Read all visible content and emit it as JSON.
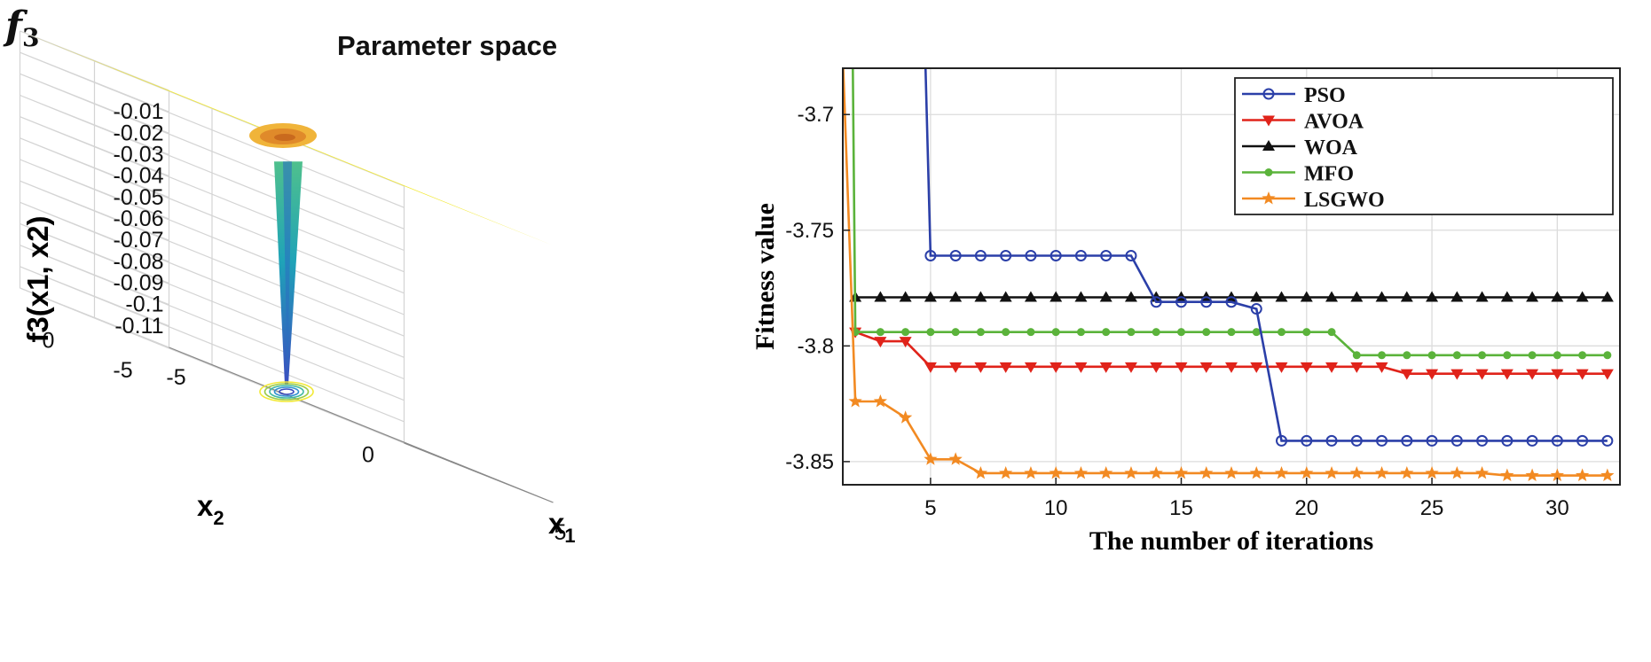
{
  "figure_label": {
    "main": "f",
    "sub": "3"
  },
  "chart_data": [
    {
      "type": "surface",
      "title": "Parameter space",
      "xlabel": "x1",
      "ylabel": "x2",
      "zlabel": "f3(x1, x2)",
      "x_ticks": [
        "-5",
        "0",
        "5"
      ],
      "y_ticks": [
        "-5",
        "0",
        "5"
      ],
      "z_ticks": [
        "-0.01",
        "-0.02",
        "-0.03",
        "-0.04",
        "-0.05",
        "-0.06",
        "-0.07",
        "-0.08",
        "-0.09",
        "-0.1",
        "-0.11"
      ],
      "xlim": [
        -5,
        5
      ],
      "ylim": [
        -5,
        5
      ],
      "zlim": [
        -0.12,
        0
      ],
      "surface": {
        "plateau_value": 0,
        "minimum_value": -0.115,
        "minimum_at": [
          0,
          0
        ],
        "plateau_color": "#f2e936"
      },
      "grid": true
    },
    {
      "type": "line",
      "xlabel": "The number of iterations",
      "ylabel": "Fitness value",
      "xlim": [
        1.5,
        32.5
      ],
      "ylim": [
        -3.86,
        -3.68
      ],
      "x_ticks": [
        5,
        10,
        15,
        20,
        25,
        30
      ],
      "y_ticks": [
        -3.85,
        -3.8,
        -3.75,
        -3.7
      ],
      "y_tick_labels": [
        "-3.85",
        "-3.8",
        "-3.75",
        "-3.7"
      ],
      "grid": true,
      "legend_position": "top-right",
      "series": [
        {
          "name": "PSO",
          "color": "#2b3fa8",
          "marker": "circle",
          "x": [
            4.8,
            5,
            6,
            7,
            8,
            9,
            10,
            11,
            12,
            13,
            14,
            15,
            16,
            17,
            18,
            19,
            20,
            21,
            22,
            23,
            24,
            25,
            26,
            27,
            28,
            29,
            30,
            31,
            32
          ],
          "values": [
            -3.68,
            -3.761,
            -3.761,
            -3.761,
            -3.761,
            -3.761,
            -3.761,
            -3.761,
            -3.761,
            -3.761,
            -3.781,
            -3.781,
            -3.781,
            -3.781,
            -3.784,
            -3.841,
            -3.841,
            -3.841,
            -3.841,
            -3.841,
            -3.841,
            -3.841,
            -3.841,
            -3.841,
            -3.841,
            -3.841,
            -3.841,
            -3.841,
            -3.841
          ]
        },
        {
          "name": "AVOA",
          "color": "#e0231a",
          "marker": "triangle-down",
          "x": [
            2,
            3,
            4,
            5,
            6,
            7,
            8,
            9,
            10,
            11,
            12,
            13,
            14,
            15,
            16,
            17,
            18,
            19,
            20,
            21,
            22,
            23,
            24,
            25,
            26,
            27,
            28,
            29,
            30,
            31,
            32
          ],
          "values": [
            -3.794,
            -3.798,
            -3.798,
            -3.809,
            -3.809,
            -3.809,
            -3.809,
            -3.809,
            -3.809,
            -3.809,
            -3.809,
            -3.809,
            -3.809,
            -3.809,
            -3.809,
            -3.809,
            -3.809,
            -3.809,
            -3.809,
            -3.809,
            -3.809,
            -3.809,
            -3.812,
            -3.812,
            -3.812,
            -3.812,
            -3.812,
            -3.812,
            -3.812,
            -3.812,
            -3.812
          ]
        },
        {
          "name": "WOA",
          "color": "#111111",
          "marker": "triangle-up",
          "x": [
            2,
            3,
            4,
            5,
            6,
            7,
            8,
            9,
            10,
            11,
            12,
            13,
            14,
            15,
            16,
            17,
            18,
            19,
            20,
            21,
            22,
            23,
            24,
            25,
            26,
            27,
            28,
            29,
            30,
            31,
            32
          ],
          "values": [
            -3.779,
            -3.779,
            -3.779,
            -3.779,
            -3.779,
            -3.779,
            -3.779,
            -3.779,
            -3.779,
            -3.779,
            -3.779,
            -3.779,
            -3.779,
            -3.779,
            -3.779,
            -3.779,
            -3.779,
            -3.779,
            -3.779,
            -3.779,
            -3.779,
            -3.779,
            -3.779,
            -3.779,
            -3.779,
            -3.779,
            -3.779,
            -3.779,
            -3.779,
            -3.779,
            -3.779
          ]
        },
        {
          "name": "MFO",
          "color": "#5bb33b",
          "marker": "dot",
          "x": [
            1.9,
            2,
            3,
            4,
            5,
            6,
            7,
            8,
            9,
            10,
            11,
            12,
            13,
            14,
            15,
            16,
            17,
            18,
            19,
            20,
            21,
            22,
            23,
            24,
            25,
            26,
            27,
            28,
            29,
            30,
            31,
            32
          ],
          "values": [
            -3.68,
            -3.794,
            -3.794,
            -3.794,
            -3.794,
            -3.794,
            -3.794,
            -3.794,
            -3.794,
            -3.794,
            -3.794,
            -3.794,
            -3.794,
            -3.794,
            -3.794,
            -3.794,
            -3.794,
            -3.794,
            -3.794,
            -3.794,
            -3.794,
            -3.804,
            -3.804,
            -3.804,
            -3.804,
            -3.804,
            -3.804,
            -3.804,
            -3.804,
            -3.804,
            -3.804,
            -3.804
          ]
        },
        {
          "name": "LSGWO",
          "color": "#f28a22",
          "marker": "star",
          "x": [
            1.5,
            2,
            3,
            4,
            5,
            6,
            7,
            8,
            9,
            10,
            11,
            12,
            13,
            14,
            15,
            16,
            17,
            18,
            19,
            20,
            21,
            22,
            23,
            24,
            25,
            26,
            27,
            28,
            29,
            30,
            31,
            32
          ],
          "values": [
            -3.675,
            -3.824,
            -3.824,
            -3.831,
            -3.849,
            -3.849,
            -3.855,
            -3.855,
            -3.855,
            -3.855,
            -3.855,
            -3.855,
            -3.855,
            -3.855,
            -3.855,
            -3.855,
            -3.855,
            -3.855,
            -3.855,
            -3.855,
            -3.855,
            -3.855,
            -3.855,
            -3.855,
            -3.855,
            -3.855,
            -3.855,
            -3.856,
            -3.856,
            -3.856,
            -3.856,
            -3.856
          ]
        }
      ]
    }
  ]
}
